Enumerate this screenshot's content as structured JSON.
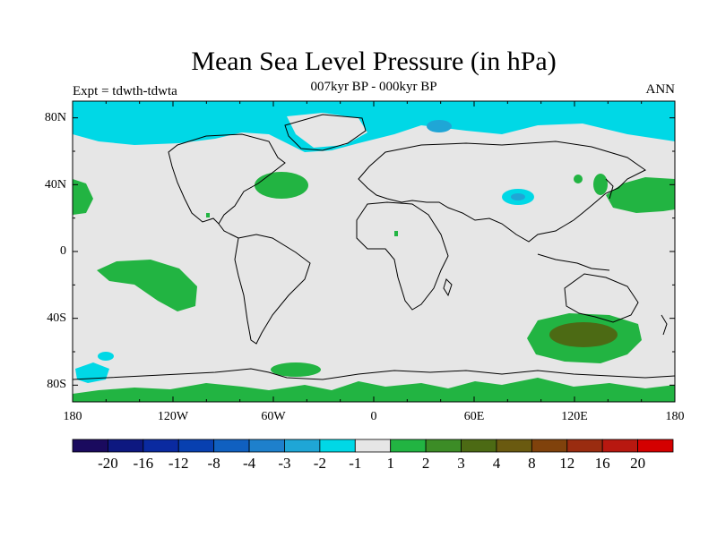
{
  "title": "Mean Sea Level Pressure (in hPa)",
  "subtitle": "007kyr BP - 000kyr BP",
  "experiment": "Expt = tdwth-tdwta",
  "season": "ANN",
  "lat_labels": [
    "80N",
    "40N",
    "0",
    "40S",
    "80S"
  ],
  "lon_labels": [
    "180",
    "120W",
    "60W",
    "0",
    "60E",
    "120E",
    "180"
  ],
  "colorbar": {
    "colors": [
      "#1a0a5e",
      "#0d1880",
      "#0a2aa0",
      "#0840b0",
      "#1060c0",
      "#1e80cc",
      "#1fa6d6",
      "#00d8e6",
      "#e6e6e6",
      "#22b442",
      "#3c8c26",
      "#4c6a14",
      "#6a5a10",
      "#80420c",
      "#9a2c10",
      "#b81810",
      "#d40000"
    ],
    "labels": [
      "-20",
      "-16",
      "-12",
      "-8",
      "-4",
      "-3",
      "-2",
      "-1",
      "1",
      "2",
      "3",
      "4",
      "8",
      "12",
      "16",
      "20"
    ]
  },
  "map": {
    "background": "#e6e6e6",
    "light_negative": "#00d8e6",
    "mid_negative": "#1fa6d6",
    "light_positive": "#22b442",
    "mid_positive": "#4c6a14"
  }
}
